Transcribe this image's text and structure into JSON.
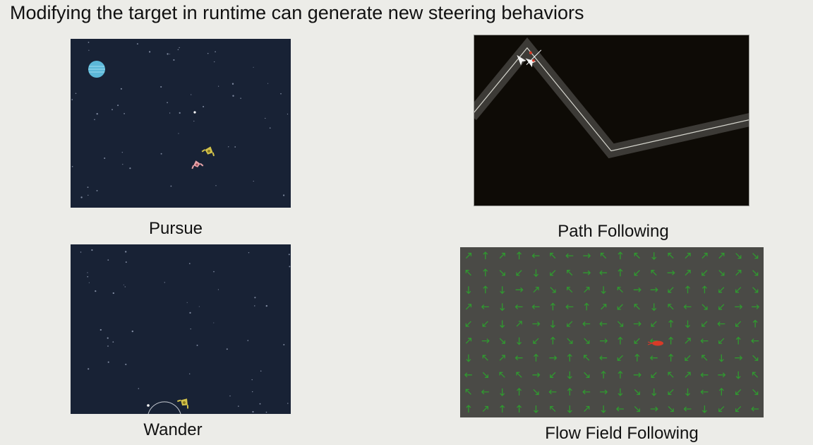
{
  "slide": {
    "title": "Modifying the target in runtime can generate new steering behaviors"
  },
  "demos": {
    "pursue": {
      "caption": "Pursue"
    },
    "path_following": {
      "caption": "Path Following"
    },
    "wander": {
      "caption": "Wander"
    },
    "flow_field": {
      "caption": "Flow Field Following"
    }
  },
  "colors": {
    "slide_background": "#ecece8",
    "space_background": "#182235",
    "planet": "#5cb8d8",
    "path_background": "#0e0b06",
    "path_road": "#3c3a36",
    "flow_background": "#4a4a46",
    "flow_arrow": "#2f9a2f",
    "agent_red": "#d83a28",
    "ship_yellow": "#d2c24a",
    "ship_pink": "#e6a3a8"
  },
  "icons": {
    "planet": "planet-icon",
    "spaceship": "spaceship-icon",
    "arrow_agent": "arrow-agent-icon",
    "field_arrow": "flow-arrow-icon"
  }
}
